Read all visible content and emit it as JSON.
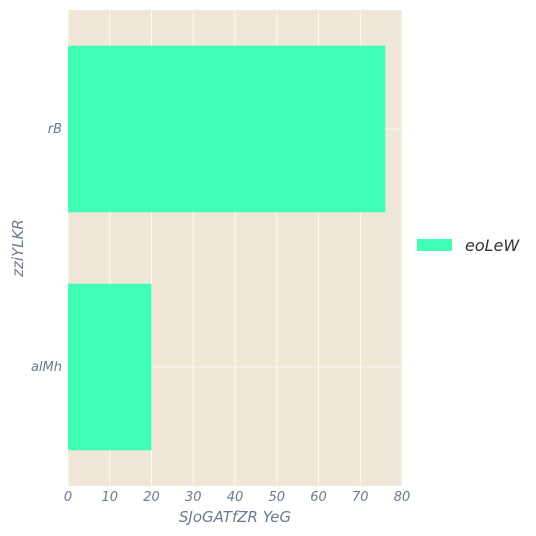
{
  "chart_data": {
    "type": "bar",
    "orientation": "horizontal",
    "categories": [
      "alMh",
      "rB"
    ],
    "series": [
      {
        "name": "eoLeW",
        "values": [
          20,
          76
        ],
        "color": "#41ffb4"
      }
    ],
    "xlabel": "SJoGATfZR YeG",
    "ylabel": "zziYLKR",
    "xlim": [
      0,
      80
    ],
    "xticks": [
      0,
      10,
      20,
      30,
      40,
      50,
      60,
      70,
      80
    ],
    "grid": true,
    "legend_placement": "right",
    "background": "#efe8d6"
  }
}
